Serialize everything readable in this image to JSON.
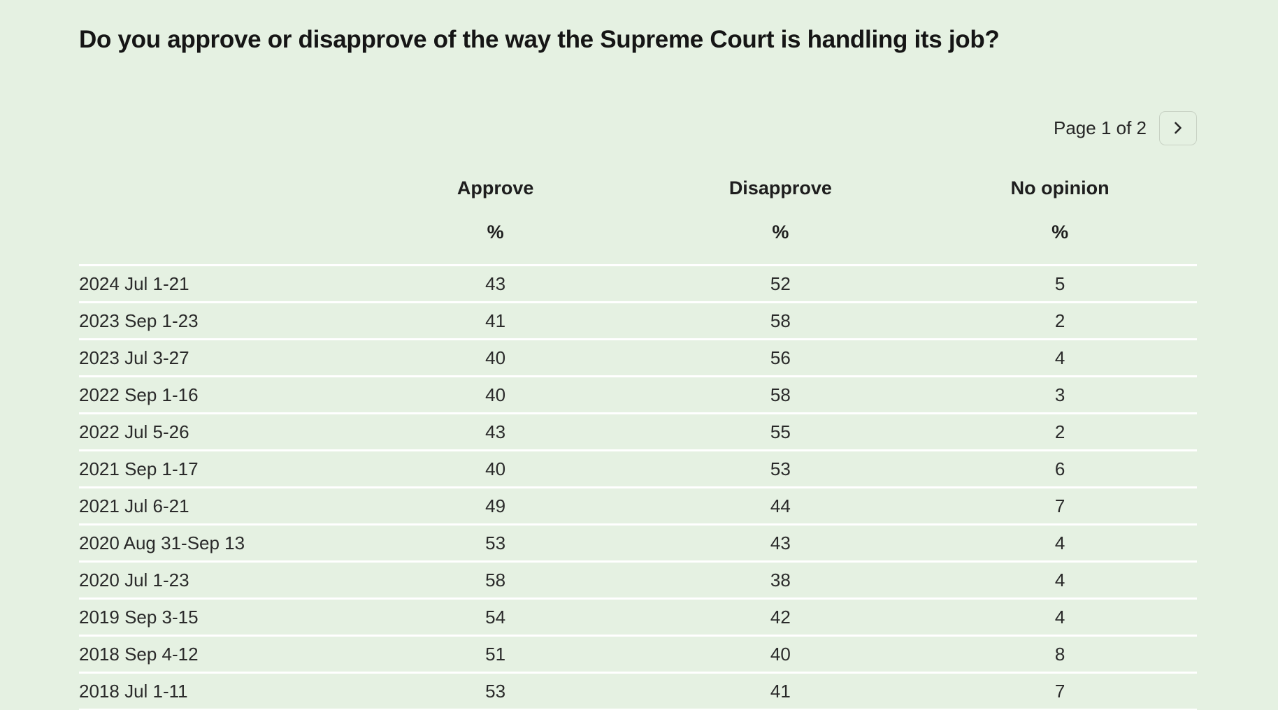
{
  "title": "Do you approve or disapprove of the way the Supreme Court is handling its job?",
  "pagination": {
    "label": "Page 1 of 2",
    "next_icon": "chevron-right-icon"
  },
  "table": {
    "unit_symbol": "%"
  },
  "chart_data": {
    "type": "table",
    "title": "Do you approve or disapprove of the way the Supreme Court is handling its job?",
    "categories": [
      "2024 Jul 1-21",
      "2023 Sep 1-23",
      "2023 Jul 3-27",
      "2022 Sep 1-16",
      "2022 Jul 5-26",
      "2021 Sep 1-17",
      "2021 Jul 6-21",
      "2020 Aug 31-Sep 13",
      "2020 Jul 1-23",
      "2019 Sep 3-15",
      "2018 Sep 4-12",
      "2018 Jul 1-11"
    ],
    "series": [
      {
        "name": "Approve",
        "unit": "%",
        "values": [
          43,
          41,
          40,
          40,
          43,
          40,
          49,
          53,
          58,
          54,
          51,
          53
        ]
      },
      {
        "name": "Disapprove",
        "unit": "%",
        "values": [
          52,
          58,
          56,
          58,
          55,
          53,
          44,
          43,
          38,
          42,
          40,
          41
        ]
      },
      {
        "name": "No opinion",
        "unit": "%",
        "values": [
          5,
          2,
          4,
          3,
          2,
          6,
          7,
          4,
          4,
          4,
          8,
          7
        ]
      }
    ]
  },
  "colors": {
    "background": "#e5f1e2",
    "separator": "#ffffff",
    "text": "#2a2a2a",
    "title": "#151515",
    "button_border": "#c8d2c4"
  }
}
